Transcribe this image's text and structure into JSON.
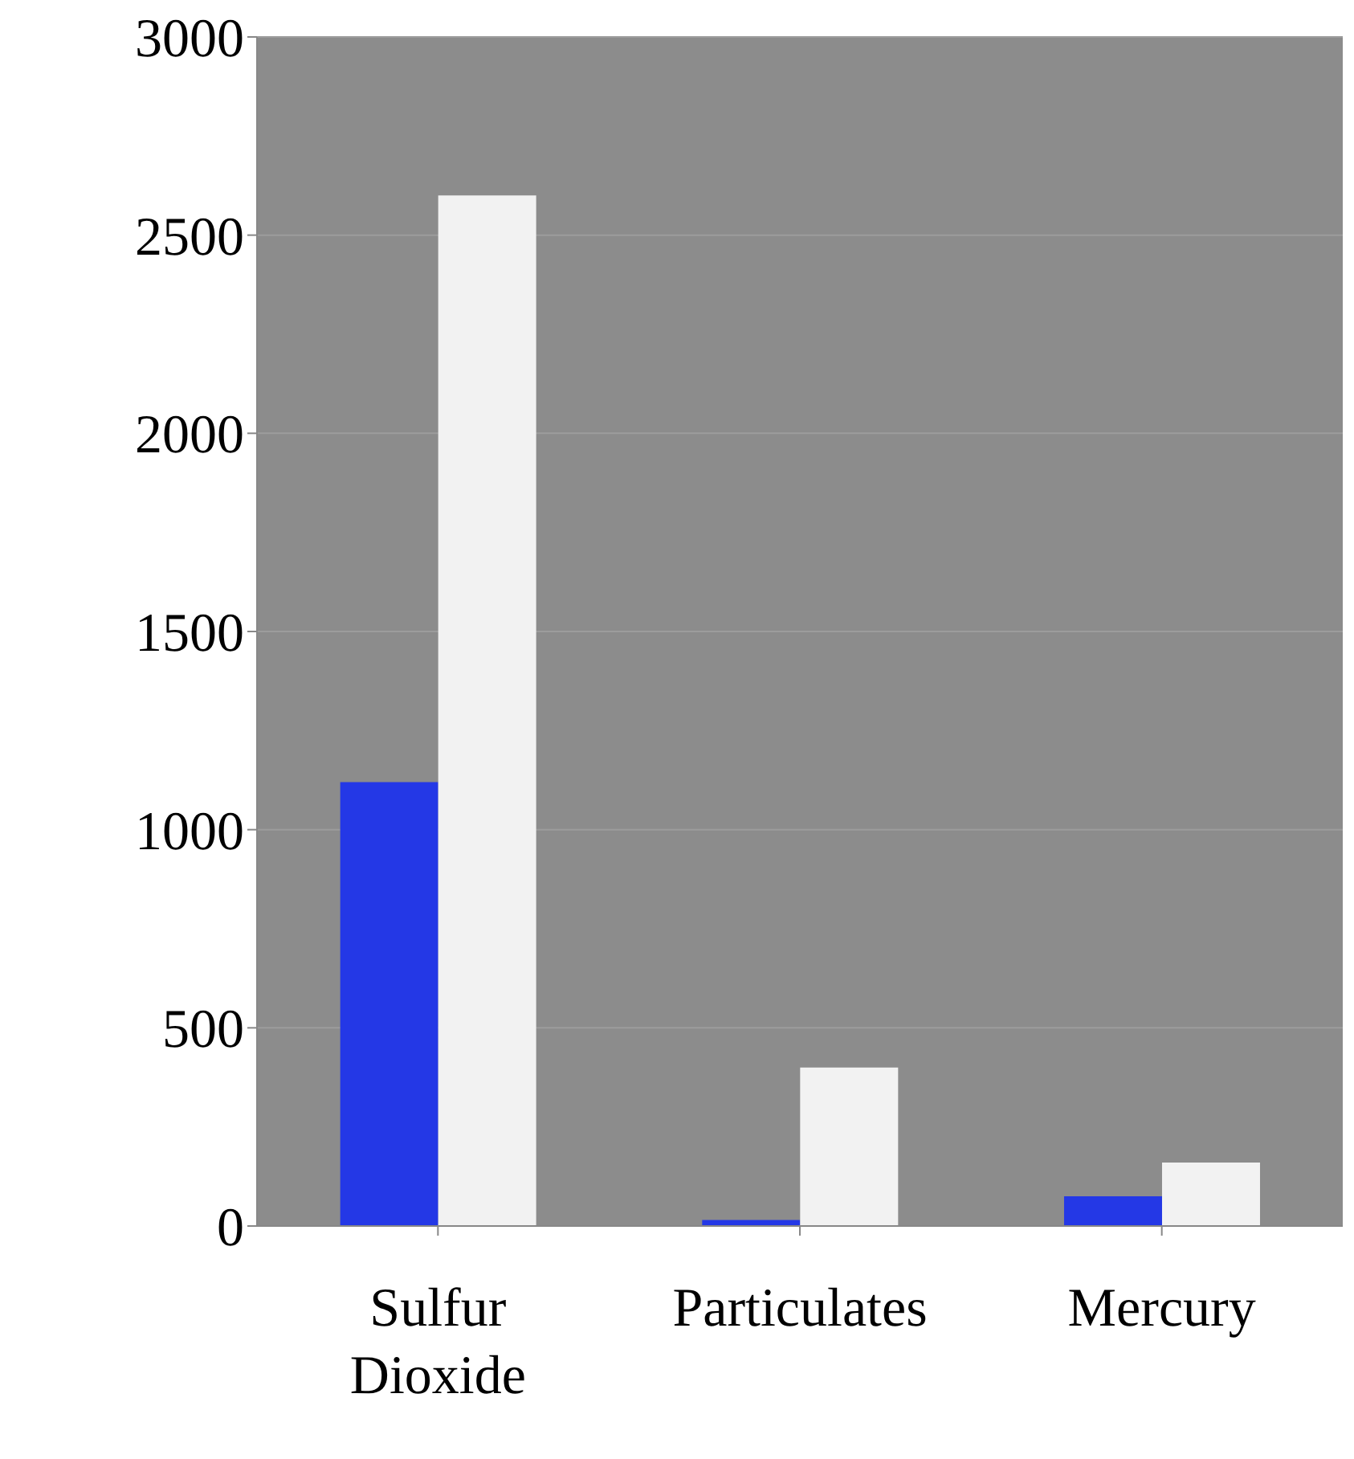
{
  "chart_data": {
    "type": "bar",
    "categories": [
      "Sulfur Dioxide",
      "Particulates",
      "Mercury"
    ],
    "series": [
      {
        "color": "#2438e6",
        "values": [
          1120,
          15,
          75
        ]
      },
      {
        "color": "#f2f2f2",
        "values": [
          2600,
          400,
          160
        ]
      }
    ],
    "ylim": [
      0,
      3000
    ],
    "yticks": [
      0,
      500,
      1000,
      1500,
      2000,
      2500,
      3000
    ],
    "grid": "y"
  }
}
